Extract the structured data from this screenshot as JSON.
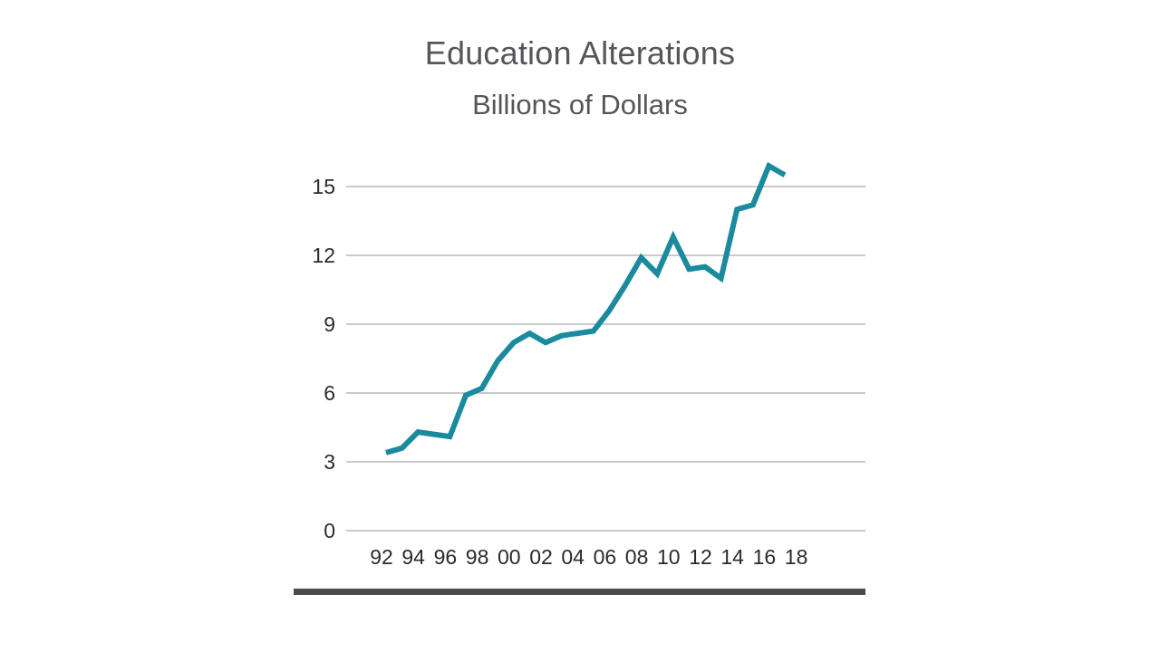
{
  "chart_data": {
    "type": "line",
    "title": "Education Alterations",
    "subtitle": "Billions of Dollars",
    "xlabel": "",
    "ylabel": "",
    "ylim": [
      0,
      15
    ],
    "y_ticks": [
      "0",
      "3",
      "6",
      "9",
      "12",
      "15"
    ],
    "x_tick_labels": [
      "92",
      "94",
      "96",
      "98",
      "00",
      "02",
      "04",
      "06",
      "08",
      "10",
      "12",
      "14",
      "16",
      "18"
    ],
    "grid": true,
    "series": [
      {
        "name": "Education Alterations",
        "color": "#1b8a9e",
        "x": [
          1992,
          1993,
          1994,
          1995,
          1996,
          1997,
          1998,
          1999,
          2000,
          2001,
          2002,
          2003,
          2004,
          2005,
          2006,
          2007,
          2008,
          2009,
          2010,
          2011,
          2012,
          2013,
          2014,
          2015,
          2016,
          2017
        ],
        "values": [
          3.4,
          3.6,
          4.3,
          4.2,
          4.1,
          5.9,
          6.2,
          7.4,
          8.2,
          8.6,
          8.2,
          8.5,
          8.6,
          8.7,
          9.6,
          10.7,
          11.9,
          11.2,
          12.8,
          11.4,
          11.5,
          11.0,
          14.0,
          14.2,
          15.9,
          15.5
        ]
      }
    ]
  },
  "colors": {
    "line": "#1b8a9e",
    "grid": "#b9b9b9",
    "text": "#555659",
    "baseline_bar": "#4a4b4f"
  }
}
